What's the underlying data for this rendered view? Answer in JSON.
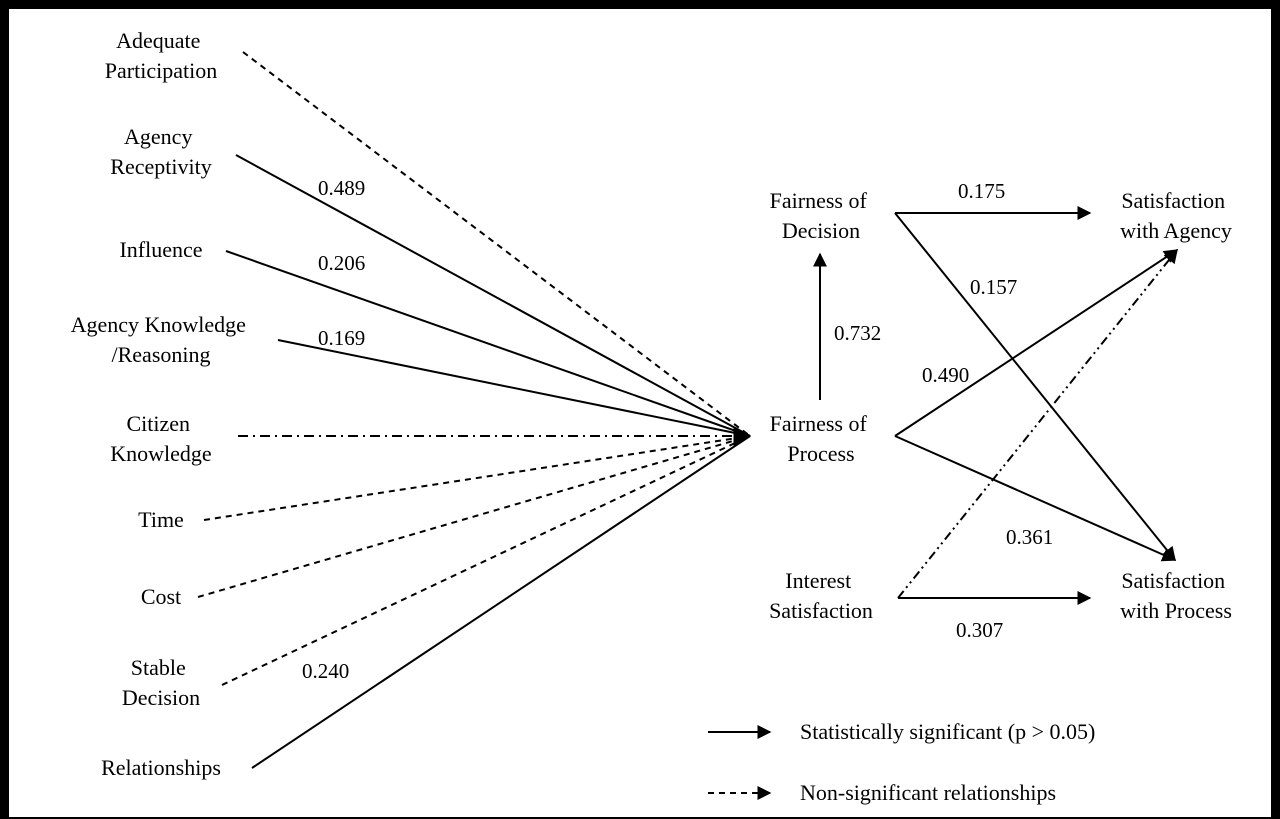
{
  "nodes": {
    "adequate_participation": [
      "Adequate",
      "Participation"
    ],
    "agency_receptivity": [
      "Agency",
      "Receptivity"
    ],
    "influence": [
      "Influence"
    ],
    "agency_knowledge": [
      "Agency Knowledge",
      "/Reasoning"
    ],
    "citizen_knowledge": [
      "Citizen",
      "Knowledge"
    ],
    "time": [
      "Time"
    ],
    "cost": [
      "Cost"
    ],
    "stable_decision": [
      "Stable",
      "Decision"
    ],
    "relationships": [
      "Relationships"
    ],
    "fairness_decision": [
      "Fairness of",
      "Decision"
    ],
    "fairness_process": [
      "Fairness of",
      "Process"
    ],
    "interest_satisfaction": [
      "Interest",
      "Satisfaction"
    ],
    "satisfaction_agency": [
      "Satisfaction",
      "with Agency"
    ],
    "satisfaction_process": [
      "Satisfaction",
      "with Process"
    ]
  },
  "edges": [
    {
      "from": "adequate_participation",
      "to": "fairness_process",
      "significant": false,
      "coefficient": ""
    },
    {
      "from": "agency_receptivity",
      "to": "fairness_process",
      "significant": true,
      "coefficient": "0.489"
    },
    {
      "from": "influence",
      "to": "fairness_process",
      "significant": true,
      "coefficient": "0.206"
    },
    {
      "from": "agency_knowledge",
      "to": "fairness_process",
      "significant": true,
      "coefficient": "0.169"
    },
    {
      "from": "citizen_knowledge",
      "to": "fairness_process",
      "significant": false,
      "coefficient": ""
    },
    {
      "from": "time",
      "to": "fairness_process",
      "significant": false,
      "coefficient": ""
    },
    {
      "from": "cost",
      "to": "fairness_process",
      "significant": false,
      "coefficient": ""
    },
    {
      "from": "stable_decision",
      "to": "fairness_process",
      "significant": false,
      "coefficient": ""
    },
    {
      "from": "relationships",
      "to": "fairness_process",
      "significant": true,
      "coefficient": "0.240"
    },
    {
      "from": "fairness_process",
      "to": "fairness_decision",
      "significant": true,
      "coefficient": "0.732"
    },
    {
      "from": "fairness_decision",
      "to": "satisfaction_agency",
      "significant": true,
      "coefficient": "0.175"
    },
    {
      "from": "fairness_decision",
      "to": "satisfaction_process",
      "significant": true,
      "coefficient": "0.157"
    },
    {
      "from": "fairness_process",
      "to": "satisfaction_agency",
      "significant": true,
      "coefficient": "0.490"
    },
    {
      "from": "fairness_process",
      "to": "satisfaction_process",
      "significant": true,
      "coefficient": "0.361"
    },
    {
      "from": "interest_satisfaction",
      "to": "satisfaction_agency",
      "significant": false,
      "coefficient": ""
    },
    {
      "from": "interest_satisfaction",
      "to": "satisfaction_process",
      "significant": true,
      "coefficient": "0.307"
    }
  ],
  "legend": {
    "significant": "Statistically significant (p > 0.05)",
    "non_significant": "Non-significant relationships"
  }
}
